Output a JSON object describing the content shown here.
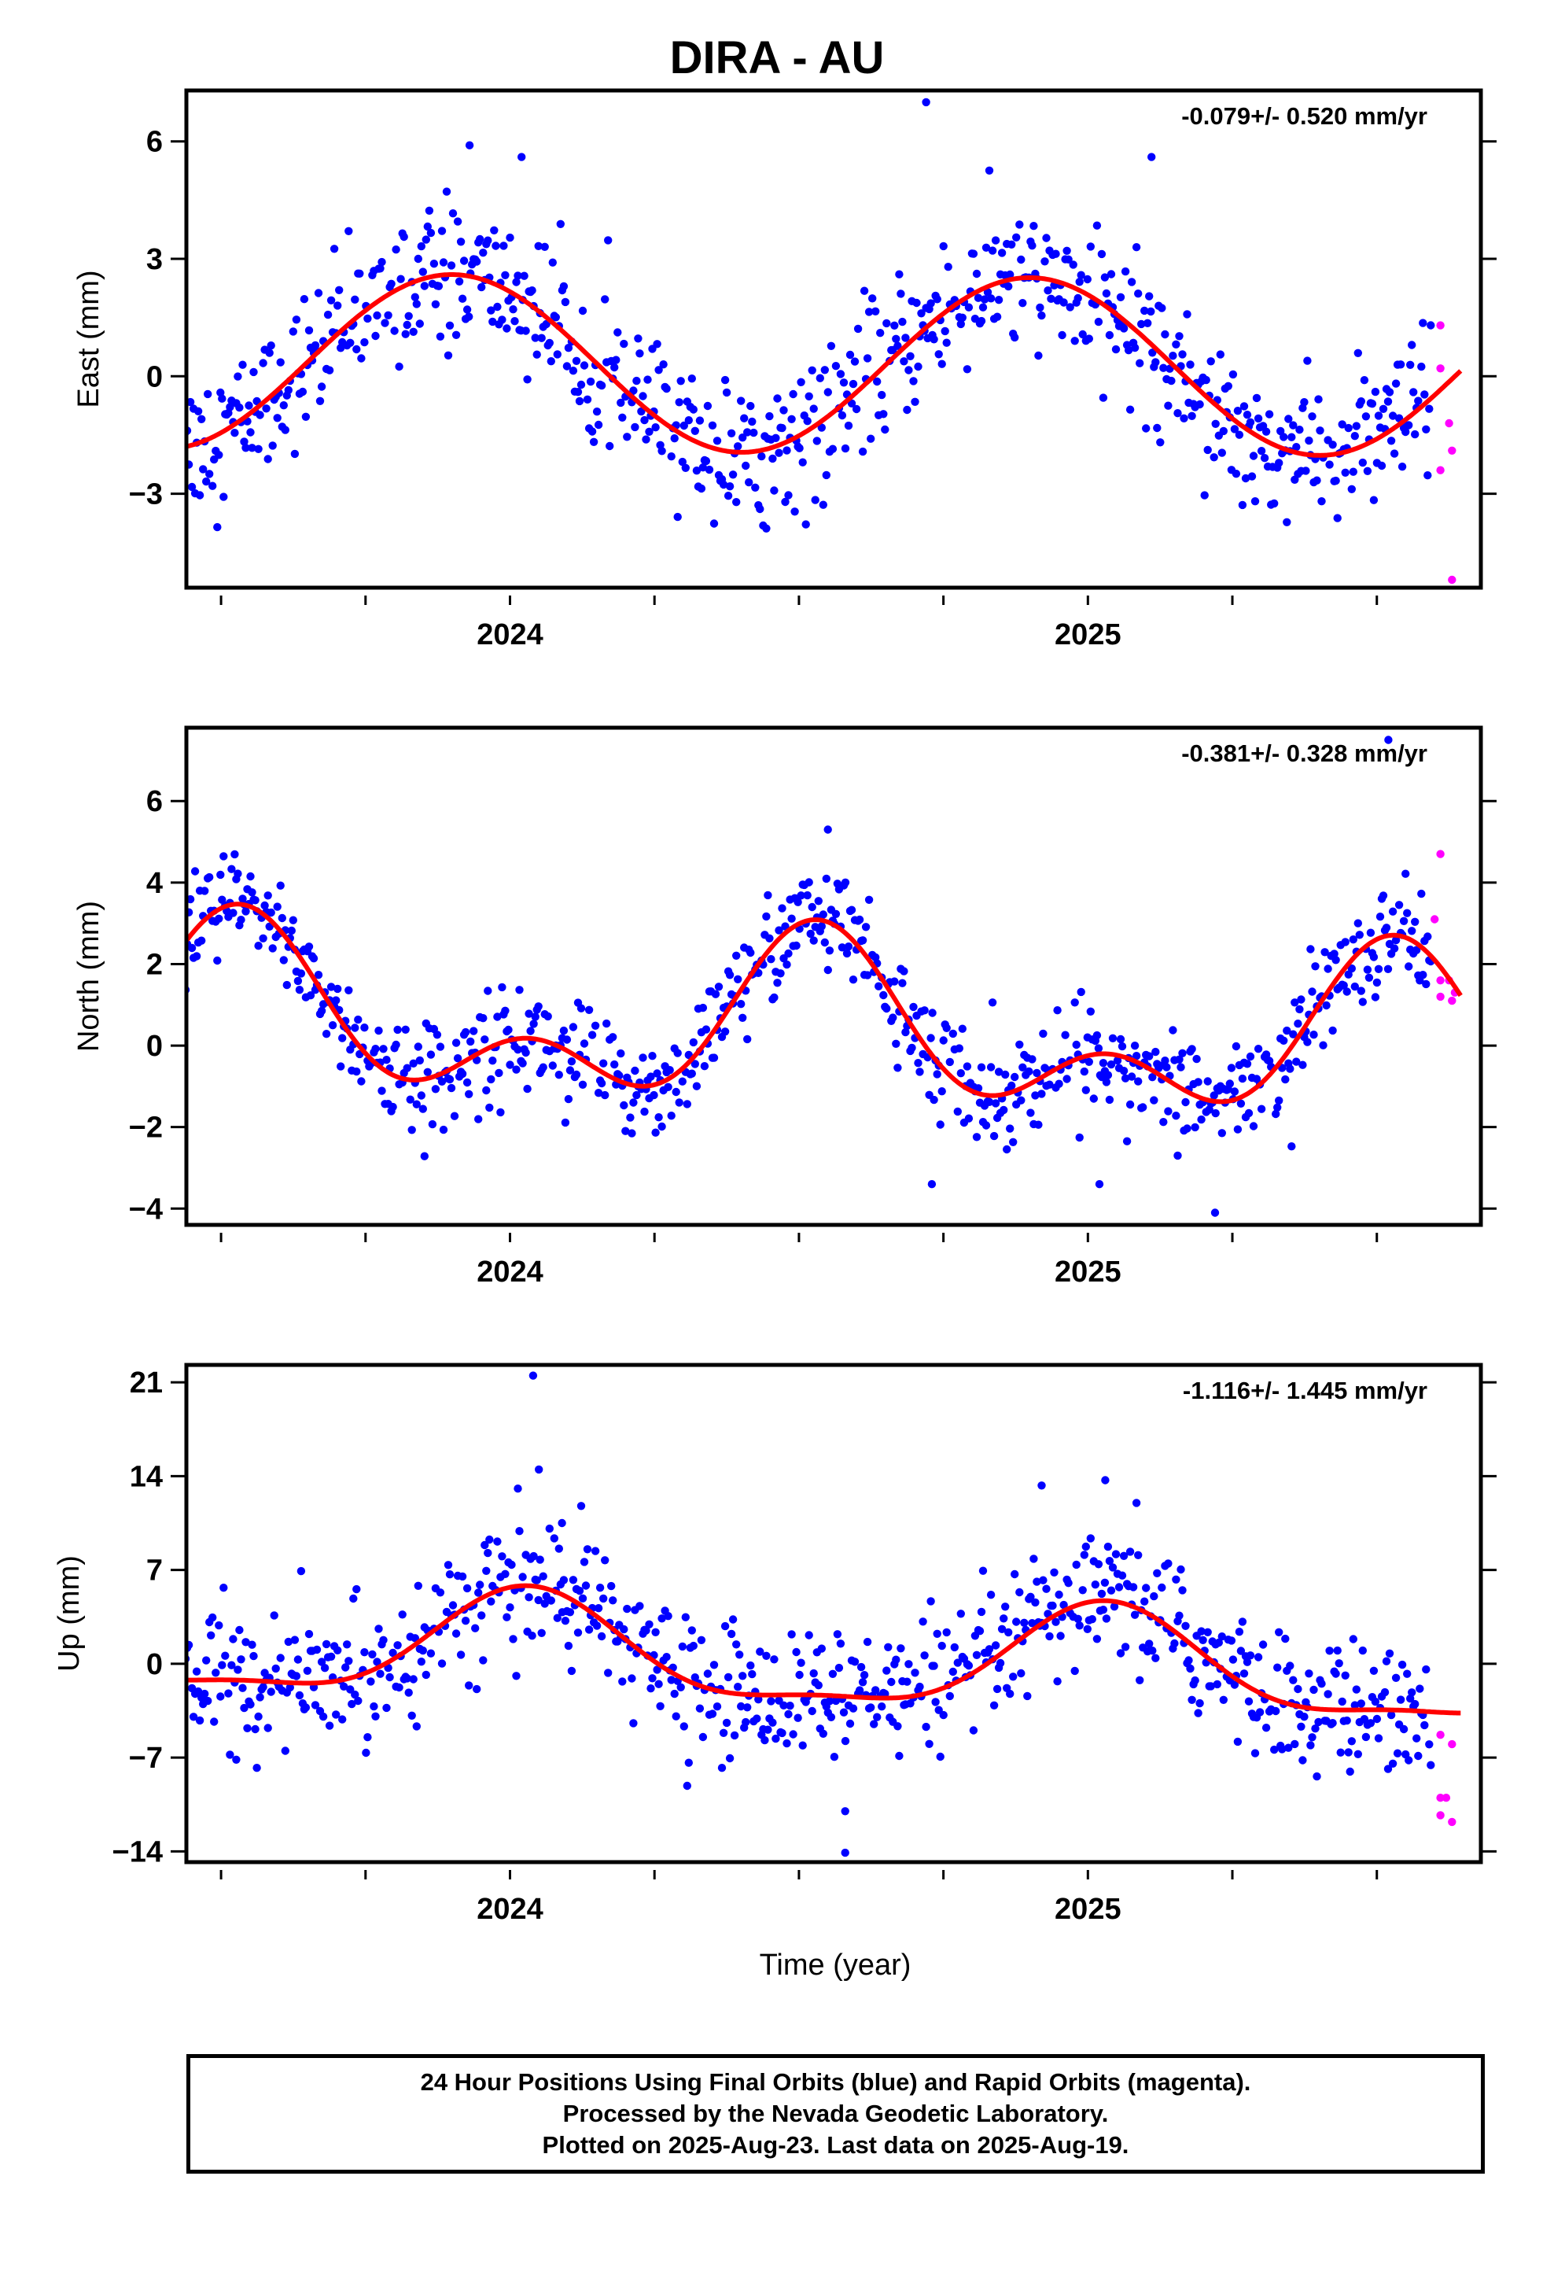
{
  "title": "DIRA - AU",
  "xlabel": "Time (year)",
  "footer": {
    "line1": "24 Hour Positions Using Final Orbits (blue) and Rapid Orbits (magenta).",
    "line2": "Processed by the Nevada Geodetic Laboratory.",
    "line3": "Plotted on 2025-Aug-23. Last data on 2025-Aug-19."
  },
  "colors": {
    "final": "#0000ff",
    "rapid": "#ff00ff",
    "fit": "#ff0000",
    "axes": "#000000"
  },
  "chart_data": [
    {
      "type": "scatter",
      "component": "east",
      "ylabel": "East (mm)",
      "rate": "-0.079+/- 0.520 mm/yr",
      "xlim": [
        2023.44,
        2025.68
      ],
      "ylim": [
        -5.4,
        7.3
      ],
      "yticks": [
        6,
        3,
        0,
        -3
      ],
      "xticks": [
        2024,
        2025
      ],
      "fit": {
        "offset": 0.3,
        "trend": -0.079,
        "annual_amp": 2.25,
        "annual_peak": 2023.9,
        "semi_amp": 0,
        "semi_peak": 2023.5
      },
      "noise_sd": 0.9,
      "outliers": [
        [
          2024.72,
          7.0
        ],
        [
          2025.11,
          5.6
        ],
        [
          2023.93,
          5.9
        ],
        [
          2024.02,
          5.6
        ]
      ],
      "rapid": [
        [
          2025.61,
          1.3
        ],
        [
          2025.61,
          0.2
        ],
        [
          2025.625,
          -1.2
        ],
        [
          2025.61,
          -2.4
        ],
        [
          2025.63,
          -1.9
        ],
        [
          2025.63,
          -5.2
        ]
      ]
    },
    {
      "type": "scatter",
      "component": "north",
      "ylabel": "North (mm)",
      "rate": "-0.381+/- 0.328 mm/yr",
      "xlim": [
        2023.44,
        2025.68
      ],
      "ylim": [
        -4.4,
        7.8
      ],
      "yticks": [
        6,
        4,
        2,
        0,
        -2,
        -4
      ],
      "xticks": [
        2024,
        2025
      ],
      "fit": {
        "offset": 0.35,
        "trend": -0.381,
        "annual_amp": 1.55,
        "annual_peak": 2023.53,
        "semi_amp": 1.2,
        "semi_peak": 2023.53
      },
      "noise_sd": 0.65,
      "outliers": [
        [
          2024.55,
          5.3
        ],
        [
          2025.02,
          -3.4
        ],
        [
          2025.22,
          -4.1
        ],
        [
          2025.52,
          7.5
        ],
        [
          2024.73,
          -3.4
        ]
      ],
      "rapid": [
        [
          2025.6,
          3.1
        ],
        [
          2025.61,
          4.7
        ],
        [
          2025.61,
          1.6
        ],
        [
          2025.625,
          1.6
        ],
        [
          2025.61,
          1.2
        ],
        [
          2025.63,
          1.1
        ],
        [
          2025.635,
          1.3
        ]
      ]
    },
    {
      "type": "scatter",
      "component": "up",
      "ylabel": "Up (mm)",
      "rate": "-1.116+/- 1.445 mm/yr",
      "xlim": [
        2023.44,
        2025.68
      ],
      "ylim": [
        -14.8,
        22.3
      ],
      "yticks": [
        21,
        14,
        7,
        0,
        -7,
        -14
      ],
      "xticks": [
        2024,
        2025
      ],
      "fit": {
        "offset": 0.3,
        "trend": -1.116,
        "annual_amp": 3.8,
        "annual_peak": 2024.03,
        "semi_amp": 1.2,
        "semi_peak": 2024.03
      },
      "noise_sd": 2.5,
      "outliers": [
        [
          2024.04,
          21.5
        ],
        [
          2024.58,
          -14.1
        ],
        [
          2024.05,
          14.5
        ],
        [
          2025.03,
          13.7
        ],
        [
          2024.92,
          13.3
        ],
        [
          2024.09,
          10.5
        ],
        [
          2024.58,
          -11.0
        ]
      ],
      "rapid": [
        [
          2025.61,
          -5.3
        ],
        [
          2025.61,
          -10.0
        ],
        [
          2025.62,
          -10.0
        ],
        [
          2025.61,
          -11.3
        ],
        [
          2025.63,
          -11.8
        ],
        [
          2025.63,
          -6.0
        ]
      ]
    }
  ]
}
